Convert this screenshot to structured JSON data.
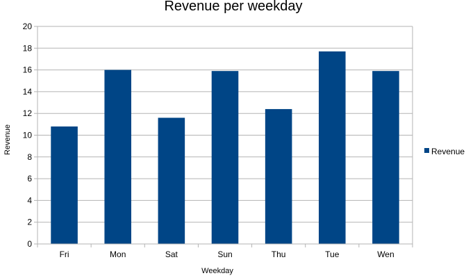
{
  "chart_data": {
    "type": "bar",
    "title": "Revenue per weekday",
    "xlabel": "Weekday",
    "ylabel": "Revenue",
    "categories": [
      "Fri",
      "Mon",
      "Sat",
      "Sun",
      "Thu",
      "Tue",
      "Wen"
    ],
    "series": [
      {
        "name": "Revenue",
        "color": "#004586",
        "values": [
          10.8,
          16.0,
          11.6,
          15.9,
          12.4,
          17.7,
          15.9
        ]
      }
    ],
    "ylim": [
      0,
      20
    ],
    "yticks": [
      0,
      2,
      4,
      6,
      8,
      10,
      12,
      14,
      16,
      18,
      20
    ],
    "grid": true,
    "legend_position": "right"
  }
}
